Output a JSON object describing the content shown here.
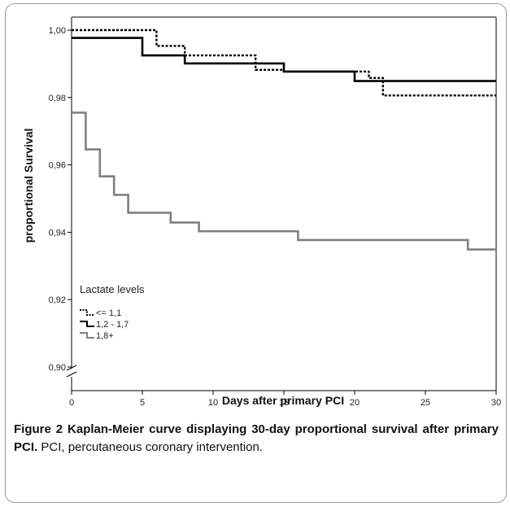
{
  "figure": {
    "caption_bold": "Figure 2 Kaplan-Meier curve displaying 30-day proportional survival after primary PCI.",
    "caption_rest": " PCI, percutaneous coronary intervention."
  },
  "chart_data": {
    "type": "line",
    "step": true,
    "title": "",
    "xlabel": "Days after primary PCI",
    "ylabel": "proportional Survival",
    "xlim": [
      0,
      30
    ],
    "ylim": [
      0.9,
      1.0
    ],
    "y_axis_break": true,
    "x_ticks": [
      "0",
      "5",
      "10",
      "15",
      "20",
      "25",
      "30"
    ],
    "y_ticks": [
      "0,90",
      "0,92",
      "0,94",
      "0,96",
      "0,98",
      "1,00"
    ],
    "grid": false,
    "legend": {
      "title": "Lactate levels",
      "placement": "lower-left",
      "entries": [
        "<= 1,1",
        "1,2 - 1,7",
        "1,8+"
      ]
    },
    "series": [
      {
        "name": "<= 1,1",
        "color": "#000000",
        "dash": "dotted",
        "x": [
          0,
          6,
          8,
          13,
          15,
          21,
          22,
          30
        ],
        "y": [
          1.0,
          0.9953,
          0.9925,
          0.9882,
          0.9877,
          0.9858,
          0.9806,
          0.9806
        ]
      },
      {
        "name": "1,2 - 1,7",
        "color": "#000000",
        "dash": "solid",
        "x": [
          0,
          5,
          8,
          15,
          20,
          21,
          30
        ],
        "y": [
          0.9977,
          0.9925,
          0.9901,
          0.9877,
          0.9849,
          0.9849,
          0.9849
        ]
      },
      {
        "name": "1,8+",
        "color": "#808080",
        "dash": "solid",
        "x": [
          0,
          1,
          2,
          3,
          4,
          7,
          9,
          16,
          28,
          30
        ],
        "y": [
          0.9755,
          0.9646,
          0.9566,
          0.9511,
          0.9458,
          0.9429,
          0.9403,
          0.9377,
          0.9349,
          0.9349
        ]
      }
    ]
  }
}
